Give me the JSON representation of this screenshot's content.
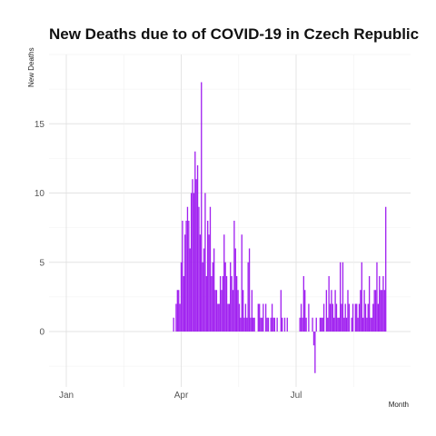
{
  "chart_data": {
    "type": "bar",
    "title": "New Deaths due to of COVID-19 in Czech Republic",
    "xlabel": "Month",
    "ylabel": "New Deaths",
    "x_start_date": "2020-01-22",
    "x_ticks": [
      "Jan",
      "Apr",
      "Jul"
    ],
    "y_ticks": [
      0,
      5,
      10,
      15
    ],
    "ylim": [
      -4,
      20
    ],
    "grid": true,
    "legend": "none",
    "bar_color": "#A020F0",
    "values": [
      0,
      0,
      0,
      0,
      0,
      0,
      0,
      0,
      0,
      0,
      0,
      0,
      0,
      0,
      0,
      0,
      0,
      0,
      0,
      0,
      0,
      0,
      0,
      0,
      0,
      0,
      0,
      0,
      0,
      0,
      0,
      0,
      0,
      0,
      0,
      0,
      0,
      0,
      0,
      0,
      0,
      0,
      0,
      0,
      0,
      0,
      0,
      0,
      0,
      0,
      0,
      0,
      0,
      0,
      0,
      0,
      0,
      0,
      0,
      0,
      0,
      0,
      0,
      0,
      1,
      0,
      2,
      3,
      3,
      2,
      5,
      8,
      4,
      7,
      8,
      9,
      8,
      6,
      10,
      11,
      10,
      13,
      11,
      12,
      9,
      7,
      18,
      5,
      6,
      10,
      4,
      8,
      7,
      9,
      4,
      5,
      6,
      3,
      3,
      2,
      2,
      4,
      3,
      4,
      7,
      5,
      4,
      2,
      2,
      5,
      4,
      3,
      8,
      6,
      4,
      3,
      2,
      1,
      7,
      3,
      1,
      2,
      1,
      5,
      6,
      1,
      3,
      1,
      1,
      0,
      0,
      2,
      2,
      1,
      1,
      2,
      0,
      2,
      1,
      1,
      0,
      1,
      2,
      1,
      1,
      0,
      1,
      0,
      0,
      3,
      1,
      0,
      1,
      0,
      1,
      0,
      0,
      0,
      0,
      0,
      0,
      0,
      0,
      0,
      1,
      2,
      1,
      4,
      3,
      1,
      0,
      2,
      0,
      0,
      1,
      -1,
      -3,
      1,
      0,
      0,
      1,
      1,
      1,
      2,
      0,
      3,
      1,
      4,
      2,
      3,
      2,
      1,
      3,
      2,
      1,
      1,
      5,
      2,
      5,
      1,
      2,
      1,
      3,
      2,
      0,
      1,
      2,
      0,
      2,
      2,
      1,
      2,
      3,
      5,
      1,
      3,
      2,
      1,
      2,
      4,
      1,
      1,
      2,
      3,
      3,
      5,
      2,
      4,
      3,
      3,
      4,
      3,
      9
    ]
  }
}
